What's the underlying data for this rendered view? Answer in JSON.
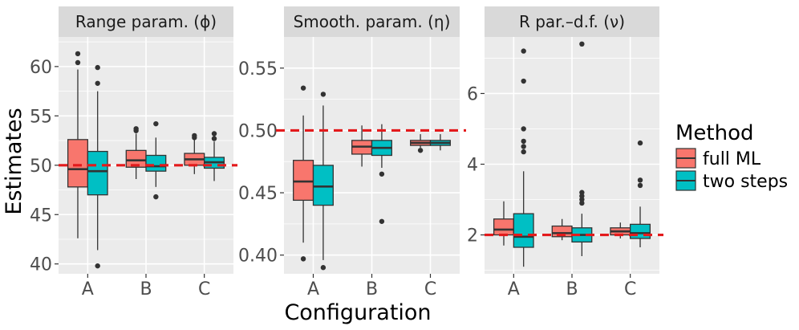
{
  "chart_data": {
    "type": "boxplot",
    "xlabel": "Configuration",
    "ylabel": "Estimates",
    "categories": [
      "A",
      "B",
      "C"
    ],
    "legend": {
      "title": "Method",
      "entries": [
        {
          "name": "full ML",
          "color": "#F8766D"
        },
        {
          "name": "two steps",
          "color": "#00BFC4"
        }
      ]
    },
    "reference_line_color": "#E31A1C",
    "panels": [
      {
        "title": "Range param. (ϕ)",
        "ylim": [
          39,
          63
        ],
        "yticks": [
          40,
          45,
          50,
          55,
          60
        ],
        "tick_labels": [
          "40",
          "45",
          "50",
          "55",
          "60"
        ],
        "reference": 50,
        "boxes": [
          {
            "cat": "A",
            "method": "full ML",
            "lower": 42.6,
            "q1": 47.8,
            "median": 49.6,
            "q3": 52.6,
            "upper": 59.7,
            "outliers": [
              60.4,
              61.3
            ]
          },
          {
            "cat": "A",
            "method": "two steps",
            "lower": 41.4,
            "q1": 47.0,
            "median": 49.4,
            "q3": 51.4,
            "upper": 57.5,
            "outliers": [
              59.9,
              58.3,
              39.8
            ]
          },
          {
            "cat": "B",
            "method": "full ML",
            "lower": 48.6,
            "q1": 49.8,
            "median": 50.5,
            "q3": 51.5,
            "upper": 53.2,
            "outliers": [
              53.5,
              53.7
            ]
          },
          {
            "cat": "B",
            "method": "two steps",
            "lower": 47.8,
            "q1": 49.4,
            "median": 49.9,
            "q3": 51.0,
            "upper": 52.8,
            "outliers": [
              54.2,
              46.8
            ]
          },
          {
            "cat": "C",
            "method": "full ML",
            "lower": 49.1,
            "q1": 50.0,
            "median": 50.6,
            "q3": 51.2,
            "upper": 52.6,
            "outliers": [
              52.8,
              53.0
            ]
          },
          {
            "cat": "C",
            "method": "two steps",
            "lower": 48.4,
            "q1": 49.7,
            "median": 50.3,
            "q3": 50.8,
            "upper": 52.4,
            "outliers": [
              53.2,
              52.7
            ]
          }
        ]
      },
      {
        "title": "Smooth. param. (η)",
        "ylim": [
          0.385,
          0.575
        ],
        "yticks": [
          0.4,
          0.45,
          0.5,
          0.55
        ],
        "tick_labels": [
          "0.40",
          "0.45",
          "0.50",
          "0.55"
        ],
        "reference": 0.5,
        "boxes": [
          {
            "cat": "A",
            "method": "full ML",
            "lower": 0.41,
            "q1": 0.444,
            "median": 0.459,
            "q3": 0.476,
            "upper": 0.512,
            "outliers": [
              0.534,
              0.397
            ]
          },
          {
            "cat": "A",
            "method": "two steps",
            "lower": 0.396,
            "q1": 0.44,
            "median": 0.455,
            "q3": 0.472,
            "upper": 0.52,
            "outliers": [
              0.529,
              0.39
            ]
          },
          {
            "cat": "B",
            "method": "full ML",
            "lower": 0.471,
            "q1": 0.481,
            "median": 0.487,
            "q3": 0.492,
            "upper": 0.504,
            "outliers": []
          },
          {
            "cat": "B",
            "method": "two steps",
            "lower": 0.47,
            "q1": 0.48,
            "median": 0.486,
            "q3": 0.492,
            "upper": 0.505,
            "outliers": [
              0.465,
              0.427
            ]
          },
          {
            "cat": "C",
            "method": "full ML",
            "lower": 0.486,
            "q1": 0.488,
            "median": 0.49,
            "q3": 0.492,
            "upper": 0.497,
            "outliers": [
              0.484
            ]
          },
          {
            "cat": "C",
            "method": "two steps",
            "lower": 0.484,
            "q1": 0.488,
            "median": 0.49,
            "q3": 0.492,
            "upper": 0.497,
            "outliers": []
          }
        ]
      },
      {
        "title": "R par.–d.f. (ν)",
        "ylim": [
          0.9,
          7.6
        ],
        "yticks": [
          2,
          4,
          6
        ],
        "tick_labels": [
          "2",
          "4",
          "6"
        ],
        "reference": 2,
        "boxes": [
          {
            "cat": "A",
            "method": "full ML",
            "lower": 1.7,
            "q1": 2.0,
            "median": 2.15,
            "q3": 2.45,
            "upper": 2.95,
            "outliers": []
          },
          {
            "cat": "A",
            "method": "two steps",
            "lower": 1.1,
            "q1": 1.65,
            "median": 1.95,
            "q3": 2.6,
            "upper": 3.8,
            "outliers": [
              7.2,
              6.35,
              5.0,
              4.65,
              4.5,
              4.35
            ]
          },
          {
            "cat": "B",
            "method": "full ML",
            "lower": 1.85,
            "q1": 1.95,
            "median": 2.05,
            "q3": 2.25,
            "upper": 2.45,
            "outliers": []
          },
          {
            "cat": "B",
            "method": "two steps",
            "lower": 1.4,
            "q1": 1.8,
            "median": 2.0,
            "q3": 2.2,
            "upper": 2.6,
            "outliers": [
              7.4,
              3.2,
              3.1,
              3.0,
              2.9
            ]
          },
          {
            "cat": "C",
            "method": "full ML",
            "lower": 1.9,
            "q1": 2.0,
            "median": 2.1,
            "q3": 2.2,
            "upper": 2.35,
            "outliers": []
          },
          {
            "cat": "C",
            "method": "two steps",
            "lower": 1.65,
            "q1": 1.9,
            "median": 2.05,
            "q3": 2.3,
            "upper": 2.8,
            "outliers": [
              4.6,
              3.55,
              3.4
            ]
          }
        ]
      }
    ]
  }
}
